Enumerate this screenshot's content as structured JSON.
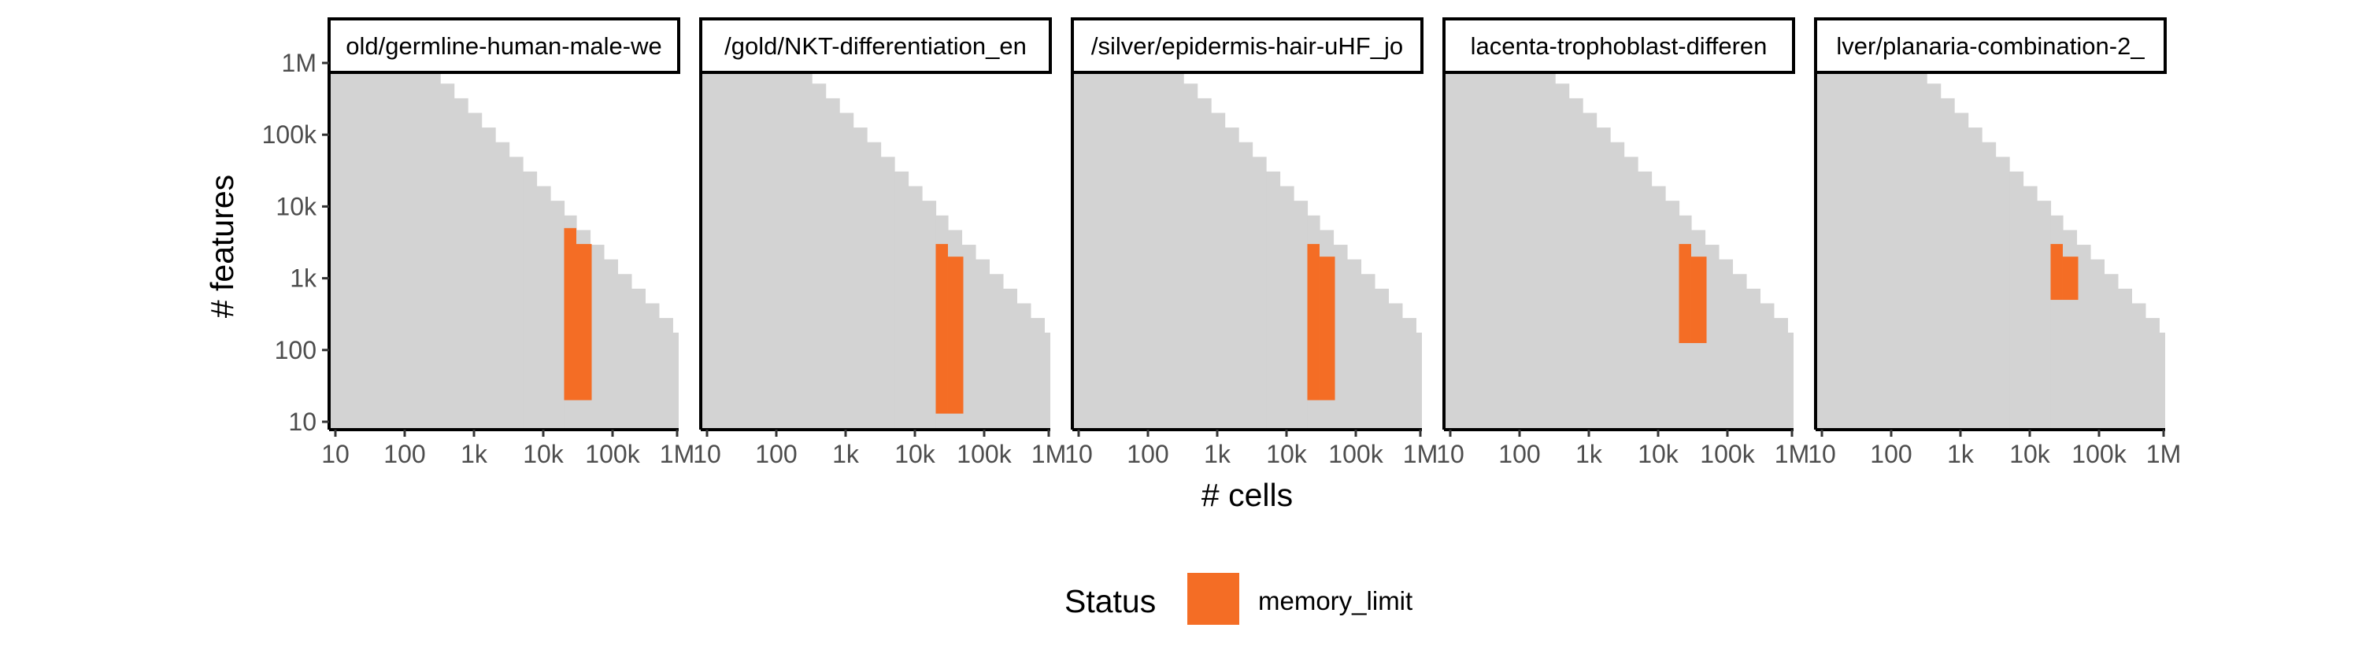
{
  "chart_data": {
    "type": "heatmap",
    "xlabel": "# cells",
    "ylabel": "# features",
    "x_scale": "log10",
    "y_scale": "log10",
    "xlim": [
      10,
      1000000
    ],
    "ylim": [
      10,
      1000000
    ],
    "x_ticks": [
      10,
      100,
      1000,
      10000,
      100000,
      1000000
    ],
    "x_tick_labels": [
      "10",
      "100",
      "1k",
      "10k",
      "100k",
      "1M"
    ],
    "y_ticks": [
      10,
      100,
      1000,
      10000,
      100000,
      1000000
    ],
    "y_tick_labels": [
      "10",
      "100",
      "1k",
      "10k",
      "100k",
      "1M"
    ],
    "background_fill": "#d3d3d3",
    "grid": false,
    "legend": {
      "title": "Status",
      "position": "bottom",
      "entries": [
        {
          "label": "memory_limit",
          "color": "#f46d25"
        }
      ]
    },
    "panels": [
      {
        "label": "old/germline-human-male-we",
        "status": "memory_limit",
        "cells": [
          {
            "x_min": 20000,
            "x_max": 30000,
            "y_min": 20,
            "y_max": 5000
          },
          {
            "x_min": 30000,
            "x_max": 50000,
            "y_min": 20,
            "y_max": 3000
          }
        ]
      },
      {
        "label": "/gold/NKT-differentiation_en",
        "status": "memory_limit",
        "cells": [
          {
            "x_min": 20000,
            "x_max": 30000,
            "y_min": 13,
            "y_max": 3000
          },
          {
            "x_min": 30000,
            "x_max": 50000,
            "y_min": 13,
            "y_max": 2000
          }
        ]
      },
      {
        "label": "/silver/epidermis-hair-uHF_jo",
        "status": "memory_limit",
        "cells": [
          {
            "x_min": 20000,
            "x_max": 30000,
            "y_min": 20,
            "y_max": 3000
          },
          {
            "x_min": 30000,
            "x_max": 50000,
            "y_min": 20,
            "y_max": 2000
          }
        ]
      },
      {
        "label": "lacenta-trophoblast-differen",
        "status": "memory_limit",
        "cells": [
          {
            "x_min": 20000,
            "x_max": 30000,
            "y_min": 125,
            "y_max": 3000
          },
          {
            "x_min": 30000,
            "x_max": 50000,
            "y_min": 125,
            "y_max": 2000
          }
        ]
      },
      {
        "label": "lver/planaria-combination-2_",
        "status": "memory_limit",
        "cells": [
          {
            "x_min": 20000,
            "x_max": 30000,
            "y_min": 500,
            "y_max": 3000
          },
          {
            "x_min": 30000,
            "x_max": 50000,
            "y_min": 500,
            "y_max": 2000
          }
        ]
      }
    ]
  }
}
